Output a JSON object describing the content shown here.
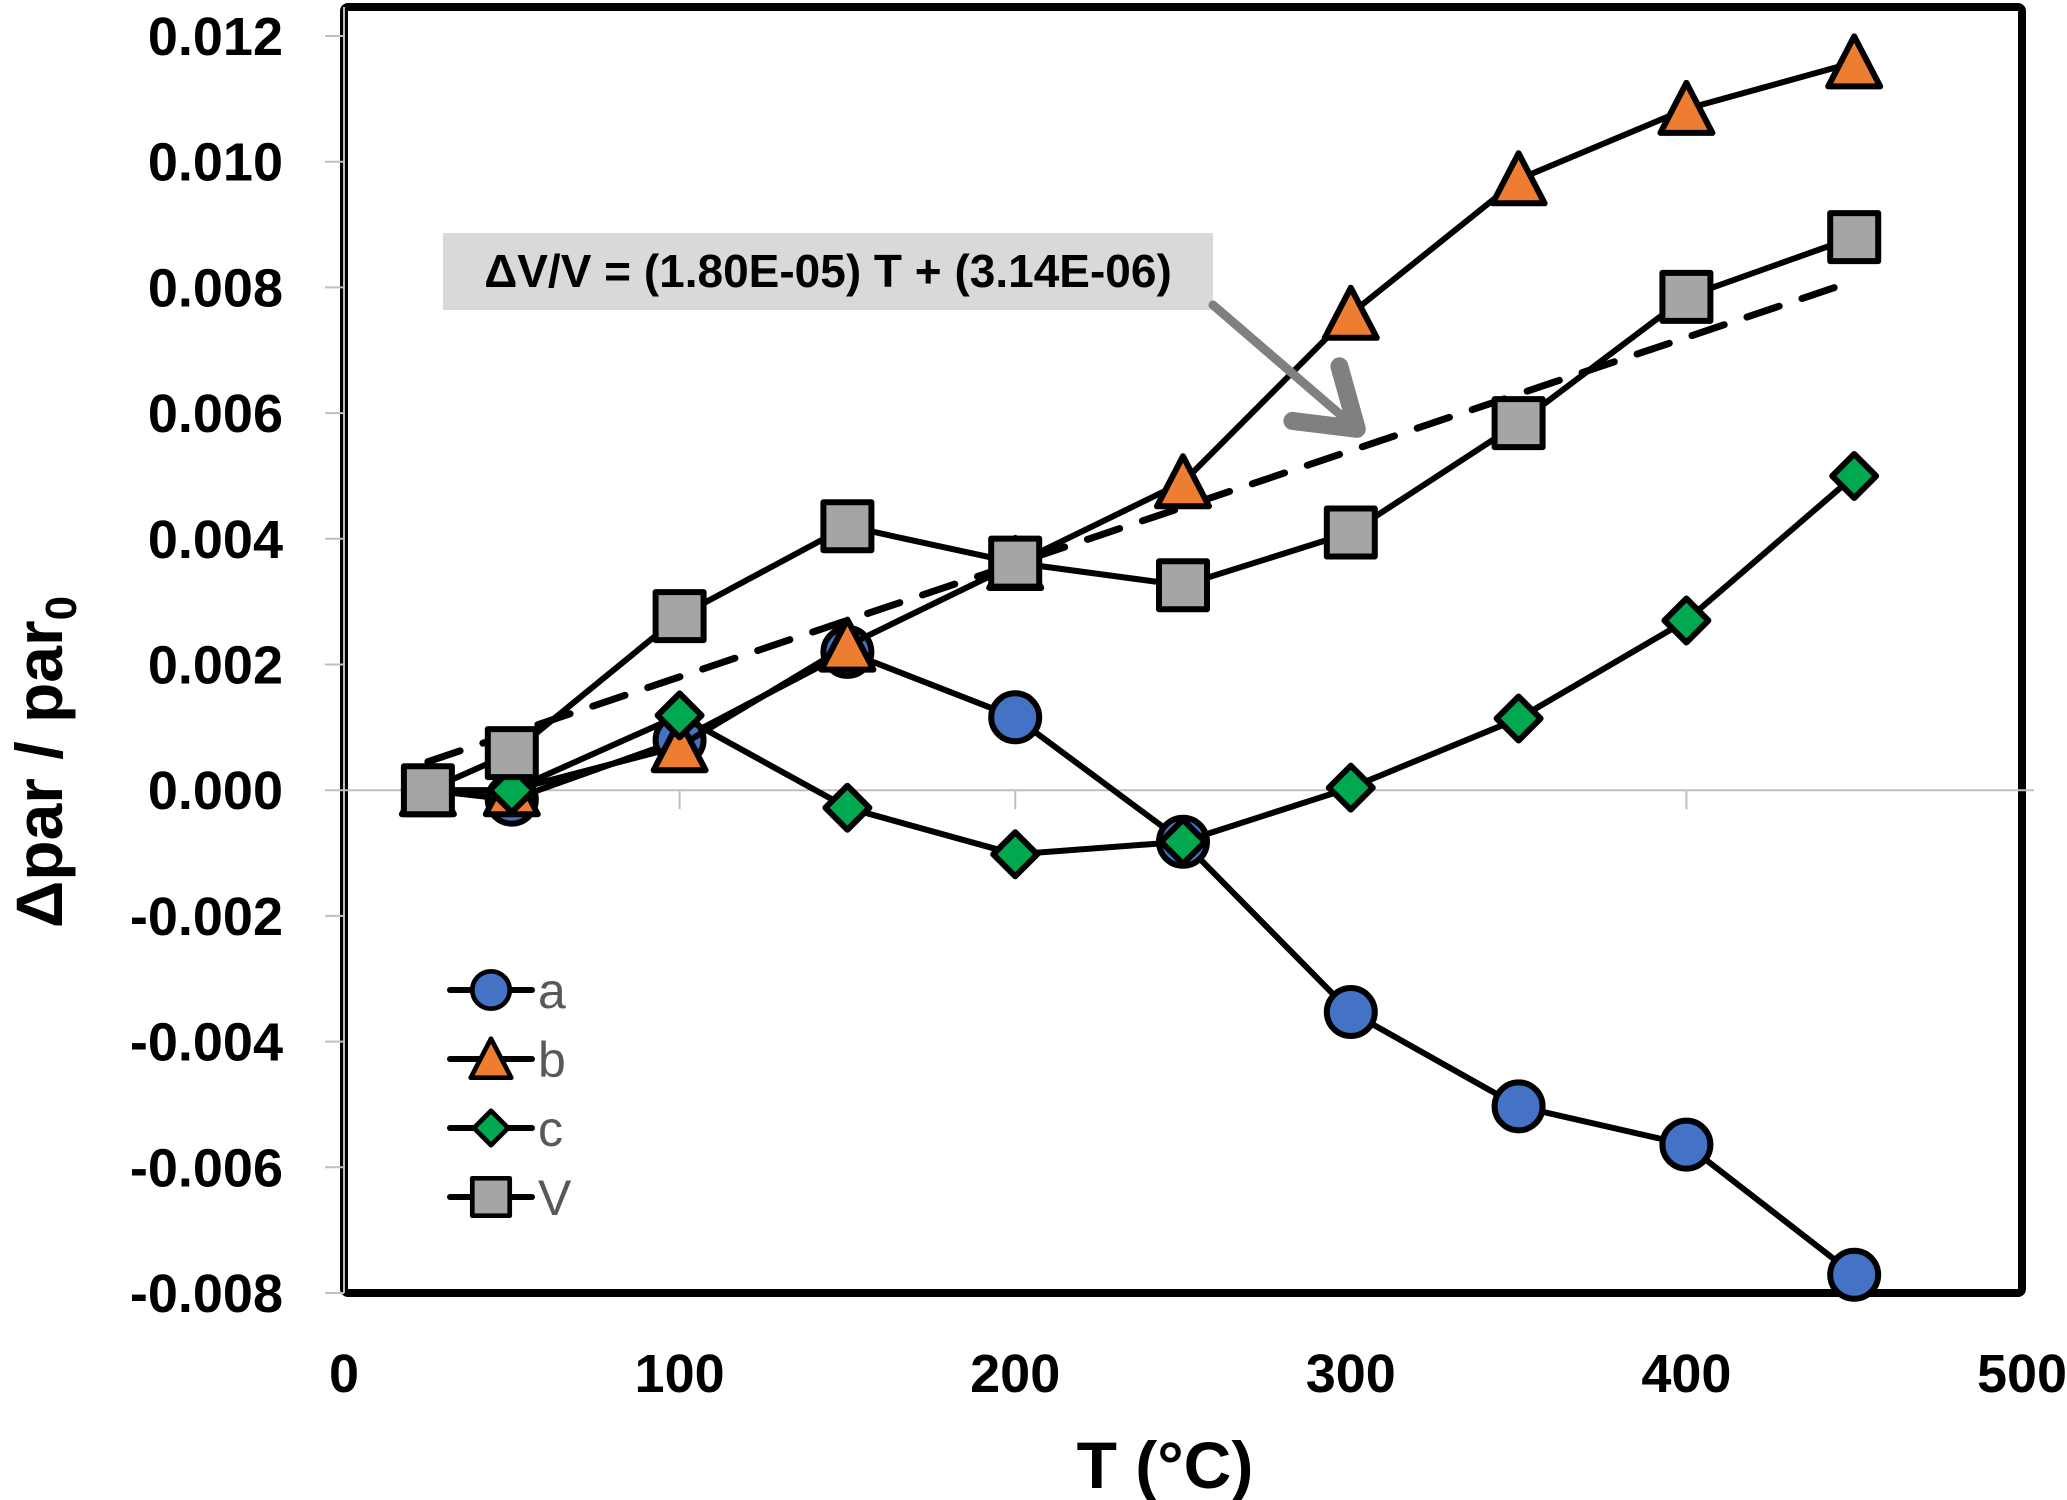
{
  "chart_data": {
    "type": "line",
    "title": "",
    "xlabel": "T (°C)",
    "ylabel": "Δpar / par",
    "ylabel_subscript": "0",
    "xlim": [
      0,
      500
    ],
    "ylim": [
      -0.008,
      0.012
    ],
    "x_ticks": [
      0,
      100,
      200,
      300,
      400,
      500
    ],
    "x_tick_labels": [
      "0",
      "100",
      "200",
      "300",
      "400",
      "500"
    ],
    "y_ticks": [
      -0.008,
      -0.006,
      -0.004,
      -0.002,
      0.0,
      0.002,
      0.004,
      0.006,
      0.008,
      0.01,
      0.012
    ],
    "y_tick_labels": [
      "-0.008",
      "-0.006",
      "-0.004",
      "-0.002",
      "0.000",
      "0.002",
      "0.004",
      "0.006",
      "0.008",
      "0.010",
      "0.012"
    ],
    "grid": false,
    "zero_line": true,
    "legend": {
      "position": "bottom-left"
    },
    "x": [
      25,
      50,
      100,
      150,
      200,
      250,
      300,
      350,
      400,
      450
    ],
    "series": [
      {
        "name": "a",
        "marker": "circle",
        "color": "#4472C4",
        "values": [
          0.0,
          -0.00015,
          0.0008,
          0.0022,
          0.00116,
          -0.00082,
          -0.00353,
          -0.00503,
          -0.00564,
          -0.00771
        ]
      },
      {
        "name": "b",
        "marker": "triangle",
        "color": "#ED7D31",
        "values": [
          0.0,
          0.0,
          0.0007,
          0.0023,
          0.0036,
          0.0049,
          0.00758,
          0.00972,
          0.01084,
          0.01158
        ]
      },
      {
        "name": "c",
        "marker": "diamond",
        "color": "#00A84F",
        "values": [
          0.0,
          0.0,
          0.00119,
          -0.00028,
          -0.00102,
          -0.00082,
          4e-05,
          0.00114,
          0.0027,
          0.005
        ]
      },
      {
        "name": "V",
        "marker": "square",
        "color": "#A5A5A5",
        "values": [
          0.0,
          0.00059,
          0.00277,
          0.0042,
          0.00362,
          0.00326,
          0.0041,
          0.00584,
          0.00785,
          0.0088
        ]
      }
    ],
    "fit_line": {
      "series": "V",
      "style": "dashed",
      "color": "#000000",
      "slope": 1.8e-05,
      "intercept": 3.14e-06,
      "x_range": [
        25,
        450
      ]
    },
    "annotations": [
      {
        "text": "ΔV/V = (1.80E-05) T + (3.14E-06)",
        "background": "#D9D9D9",
        "arrow_color": "#808080",
        "arrow_target": [
          300,
          0.0058
        ]
      }
    ]
  }
}
